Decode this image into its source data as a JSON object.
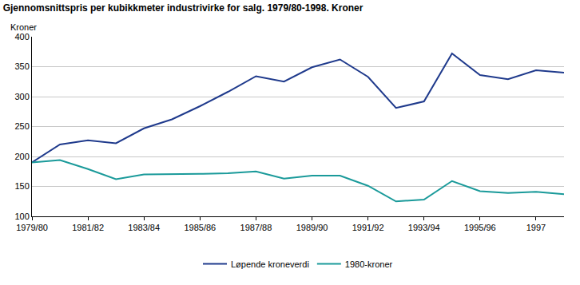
{
  "chart_data": {
    "type": "line",
    "title": "Gjennomsnittspris per kubikkmeter industrivirke for salg. 1979/80-1998. Kroner",
    "y_label": "Kroner",
    "categories": [
      "1979/80",
      null,
      "1981/82",
      null,
      "1983/84",
      null,
      "1985/86",
      null,
      "1987/88",
      null,
      "1989/90",
      null,
      "1991/92",
      null,
      "1993/94",
      null,
      "1995/96",
      null,
      "1997",
      null
    ],
    "series": [
      {
        "name": "Løpende kroneverdi",
        "color": "#1f3a8c",
        "values": [
          190,
          220,
          227,
          222,
          247,
          262,
          284,
          308,
          334,
          325,
          349,
          362,
          333,
          281,
          292,
          372,
          336,
          329,
          344,
          340
        ]
      },
      {
        "name": "1980-kroner",
        "color": "#1a9a9a",
        "values": [
          190,
          194,
          179,
          162,
          170,
          170,
          171,
          172,
          175,
          163,
          168,
          168,
          151,
          125,
          128,
          159,
          142,
          139,
          141,
          137
        ]
      }
    ],
    "ylim": [
      100,
      400
    ],
    "yticks": [
      100,
      150,
      200,
      250,
      300,
      350,
      400
    ],
    "grid": true,
    "legend": "bottom"
  }
}
